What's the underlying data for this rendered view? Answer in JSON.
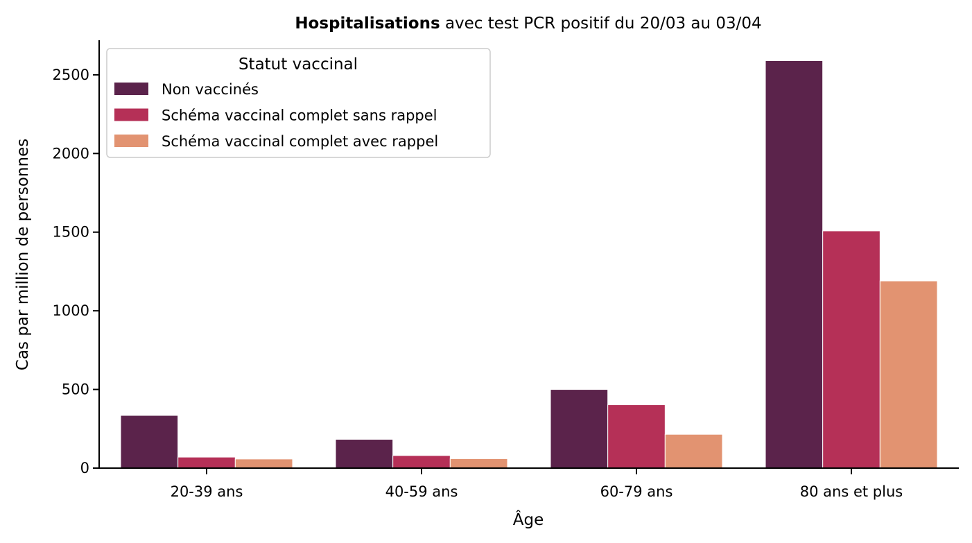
{
  "chart_data": {
    "type": "bar",
    "title_bold": "Hospitalisations",
    "title_rest": " avec test PCR positif du 20/03 au 03/04",
    "xlabel": "Âge",
    "ylabel": "Cas par million de personnes",
    "categories": [
      "20-39 ans",
      "40-59 ans",
      "60-79 ans",
      "80 ans et plus"
    ],
    "ylim": [
      0,
      2720
    ],
    "yticks": [
      0,
      500,
      1000,
      1500,
      2000,
      2500
    ],
    "legend": {
      "title": "Statut vaccinal",
      "position": "top-left"
    },
    "grid": false,
    "series": [
      {
        "name": "Non vaccinés",
        "color": "#5b234b",
        "values": [
          335,
          183,
          500,
          2590
        ]
      },
      {
        "name": "Schéma vaccinal complet sans rappel",
        "color": "#b53057",
        "values": [
          70,
          80,
          403,
          1508
        ]
      },
      {
        "name": "Schéma vaccinal complet avec rappel",
        "color": "#e29371",
        "values": [
          58,
          60,
          215,
          1190
        ]
      }
    ]
  }
}
